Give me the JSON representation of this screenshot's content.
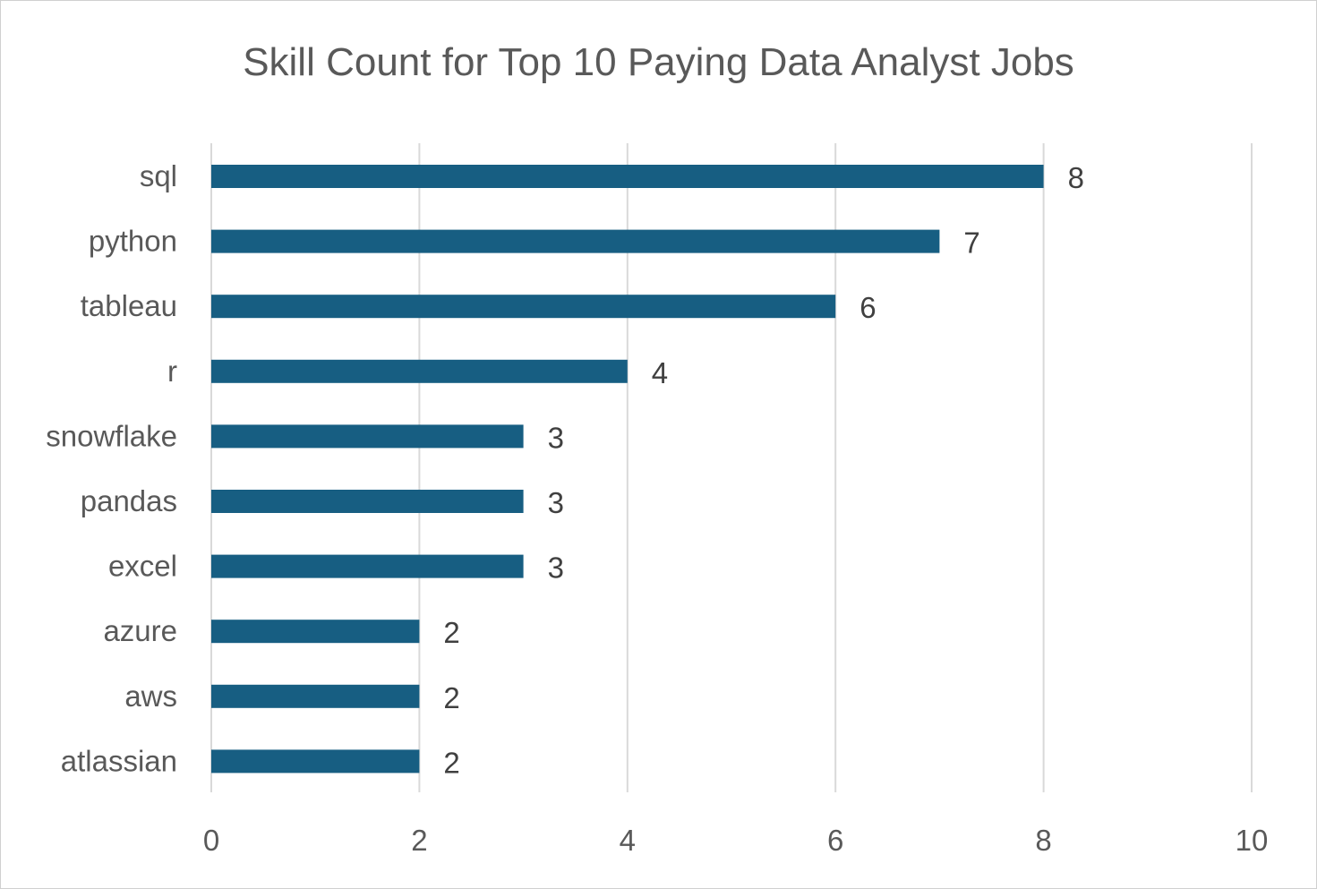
{
  "chart_data": {
    "type": "bar",
    "orientation": "horizontal",
    "title": "Skill Count for Top 10 Paying Data Analyst Jobs",
    "xlabel": "",
    "ylabel": "",
    "categories": [
      "sql",
      "python",
      "tableau",
      "r",
      "snowflake",
      "pandas",
      "excel",
      "azure",
      "aws",
      "atlassian"
    ],
    "values": [
      8,
      7,
      6,
      4,
      3,
      3,
      3,
      2,
      2,
      2
    ],
    "xlim": [
      0,
      10
    ],
    "x_ticks": [
      0,
      2,
      4,
      6,
      8,
      10
    ],
    "grid": true,
    "legend": "none",
    "data_labels": true,
    "colors": {
      "bar": "#175E82",
      "grid": "#D9D9D9",
      "text": "#595959"
    }
  }
}
